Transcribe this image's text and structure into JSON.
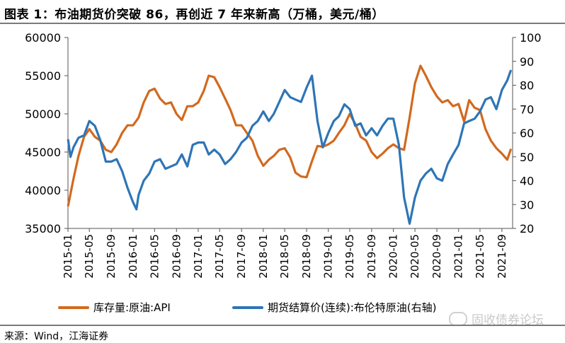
{
  "title": "图表 1：布油期货价突破 86，再创近 7 年来新高（万桶，美元/桶）",
  "source": "来源：Wind，江海证券",
  "watermark": "固收债券论坛",
  "colors": {
    "series1": "#D2691E",
    "series2": "#2E75B6",
    "axis": "#555555"
  },
  "chart_data": {
    "type": "line",
    "x_labels": [
      "2015-01",
      "2015-05",
      "2015-09",
      "2016-01",
      "2016-05",
      "2016-09",
      "2017-01",
      "2017-05",
      "2017-09",
      "2018-01",
      "2018-05",
      "2018-09",
      "2019-01",
      "2019-05",
      "2019-09",
      "2020-01",
      "2020-05",
      "2020-09",
      "2021-01",
      "2021-05",
      "2021-09"
    ],
    "left_axis": {
      "ylim": [
        35000,
        60000
      ],
      "ticks": [
        35000,
        40000,
        45000,
        50000,
        55000,
        60000
      ]
    },
    "right_axis": {
      "ylim": [
        20,
        100
      ],
      "ticks": [
        20,
        30,
        40,
        50,
        60,
        70,
        80,
        90,
        100
      ]
    },
    "series": [
      {
        "name": "库存量:原油:API",
        "axis": "left",
        "color": "#D2691E",
        "points": [
          [
            "2015-01-02",
            38000
          ],
          [
            "2015-02-01",
            41500
          ],
          [
            "2015-03-01",
            44500
          ],
          [
            "2015-04-01",
            47000
          ],
          [
            "2015-05-01",
            48000
          ],
          [
            "2015-06-01",
            47000
          ],
          [
            "2015-07-01",
            46500
          ],
          [
            "2015-08-01",
            45300
          ],
          [
            "2015-09-01",
            45000
          ],
          [
            "2015-10-01",
            46000
          ],
          [
            "2015-11-01",
            47500
          ],
          [
            "2015-12-01",
            48500
          ],
          [
            "2016-01-01",
            48500
          ],
          [
            "2016-02-01",
            49500
          ],
          [
            "2016-03-01",
            51500
          ],
          [
            "2016-04-01",
            53000
          ],
          [
            "2016-05-01",
            53300
          ],
          [
            "2016-06-01",
            52000
          ],
          [
            "2016-07-01",
            51300
          ],
          [
            "2016-08-01",
            51500
          ],
          [
            "2016-09-01",
            50000
          ],
          [
            "2016-10-01",
            49200
          ],
          [
            "2016-11-01",
            51000
          ],
          [
            "2016-12-01",
            51000
          ],
          [
            "2017-01-01",
            51500
          ],
          [
            "2017-02-01",
            53000
          ],
          [
            "2017-03-01",
            55000
          ],
          [
            "2017-04-01",
            54800
          ],
          [
            "2017-05-01",
            53500
          ],
          [
            "2017-06-01",
            52000
          ],
          [
            "2017-07-01",
            50500
          ],
          [
            "2017-08-01",
            48500
          ],
          [
            "2017-09-01",
            48500
          ],
          [
            "2017-10-01",
            47500
          ],
          [
            "2017-11-01",
            46500
          ],
          [
            "2017-12-01",
            44500
          ],
          [
            "2018-01-01",
            43200
          ],
          [
            "2018-02-01",
            44000
          ],
          [
            "2018-03-01",
            44500
          ],
          [
            "2018-04-01",
            45300
          ],
          [
            "2018-05-01",
            45500
          ],
          [
            "2018-06-01",
            44300
          ],
          [
            "2018-07-01",
            42300
          ],
          [
            "2018-08-01",
            41800
          ],
          [
            "2018-09-01",
            41700
          ],
          [
            "2018-10-01",
            43800
          ],
          [
            "2018-11-01",
            45800
          ],
          [
            "2018-12-01",
            45700
          ],
          [
            "2019-01-01",
            46000
          ],
          [
            "2019-02-01",
            46500
          ],
          [
            "2019-03-01",
            47500
          ],
          [
            "2019-04-01",
            48500
          ],
          [
            "2019-05-01",
            50000
          ],
          [
            "2019-06-01",
            48700
          ],
          [
            "2019-07-01",
            47000
          ],
          [
            "2019-08-01",
            46500
          ],
          [
            "2019-09-01",
            45000
          ],
          [
            "2019-10-01",
            44200
          ],
          [
            "2019-11-01",
            44800
          ],
          [
            "2019-12-01",
            45500
          ],
          [
            "2020-01-01",
            46000
          ],
          [
            "2020-02-01",
            45500
          ],
          [
            "2020-03-01",
            45300
          ],
          [
            "2020-04-01",
            49500
          ],
          [
            "2020-05-01",
            54000
          ],
          [
            "2020-06-01",
            56300
          ],
          [
            "2020-07-01",
            55000
          ],
          [
            "2020-08-01",
            53500
          ],
          [
            "2020-09-01",
            52300
          ],
          [
            "2020-10-01",
            51500
          ],
          [
            "2020-11-01",
            51800
          ],
          [
            "2020-12-01",
            51000
          ],
          [
            "2021-01-01",
            51300
          ],
          [
            "2021-02-01",
            49000
          ],
          [
            "2021-03-01",
            51800
          ],
          [
            "2021-04-01",
            50800
          ],
          [
            "2021-05-01",
            50500
          ],
          [
            "2021-06-01",
            48000
          ],
          [
            "2021-07-01",
            46500
          ],
          [
            "2021-08-01",
            45500
          ],
          [
            "2021-09-01",
            44800
          ],
          [
            "2021-10-01",
            44000
          ],
          [
            "2021-10-20",
            45300
          ]
        ]
      },
      {
        "name": "期货结算价(连续):布伦特原油(右轴)",
        "axis": "right",
        "color": "#2E75B6",
        "points": [
          [
            "2015-01-02",
            57
          ],
          [
            "2015-01-15",
            50
          ],
          [
            "2015-02-01",
            54
          ],
          [
            "2015-03-01",
            58
          ],
          [
            "2015-04-01",
            59
          ],
          [
            "2015-05-01",
            65
          ],
          [
            "2015-06-01",
            63
          ],
          [
            "2015-07-01",
            57
          ],
          [
            "2015-08-01",
            48
          ],
          [
            "2015-09-01",
            48
          ],
          [
            "2015-10-01",
            49
          ],
          [
            "2015-11-01",
            44
          ],
          [
            "2015-12-01",
            37
          ],
          [
            "2016-01-01",
            31
          ],
          [
            "2016-01-20",
            28
          ],
          [
            "2016-02-01",
            34
          ],
          [
            "2016-03-01",
            40
          ],
          [
            "2016-04-01",
            43
          ],
          [
            "2016-05-01",
            48
          ],
          [
            "2016-06-01",
            49
          ],
          [
            "2016-07-01",
            45
          ],
          [
            "2016-08-01",
            46
          ],
          [
            "2016-09-01",
            47
          ],
          [
            "2016-10-01",
            51
          ],
          [
            "2016-11-01",
            46
          ],
          [
            "2016-12-01",
            55
          ],
          [
            "2017-01-01",
            56
          ],
          [
            "2017-02-01",
            56
          ],
          [
            "2017-03-01",
            51
          ],
          [
            "2017-04-01",
            53
          ],
          [
            "2017-05-01",
            51
          ],
          [
            "2017-06-01",
            47
          ],
          [
            "2017-07-01",
            49
          ],
          [
            "2017-08-01",
            52
          ],
          [
            "2017-09-01",
            56
          ],
          [
            "2017-10-01",
            58
          ],
          [
            "2017-11-01",
            63
          ],
          [
            "2017-12-01",
            65
          ],
          [
            "2018-01-01",
            69
          ],
          [
            "2018-02-01",
            65
          ],
          [
            "2018-03-01",
            68
          ],
          [
            "2018-04-01",
            73
          ],
          [
            "2018-05-01",
            78
          ],
          [
            "2018-06-01",
            75
          ],
          [
            "2018-07-01",
            74
          ],
          [
            "2018-08-01",
            73
          ],
          [
            "2018-09-01",
            79
          ],
          [
            "2018-10-01",
            84
          ],
          [
            "2018-11-01",
            65
          ],
          [
            "2018-12-01",
            54
          ],
          [
            "2019-01-01",
            60
          ],
          [
            "2019-02-01",
            65
          ],
          [
            "2019-03-01",
            67
          ],
          [
            "2019-04-01",
            72
          ],
          [
            "2019-05-01",
            70
          ],
          [
            "2019-06-01",
            63
          ],
          [
            "2019-07-01",
            64
          ],
          [
            "2019-08-01",
            59
          ],
          [
            "2019-09-01",
            62
          ],
          [
            "2019-10-01",
            59
          ],
          [
            "2019-11-01",
            63
          ],
          [
            "2019-12-01",
            66
          ],
          [
            "2020-01-01",
            66
          ],
          [
            "2020-02-01",
            55
          ],
          [
            "2020-03-01",
            33
          ],
          [
            "2020-04-01",
            22
          ],
          [
            "2020-05-01",
            33
          ],
          [
            "2020-06-01",
            40
          ],
          [
            "2020-07-01",
            43
          ],
          [
            "2020-08-01",
            45
          ],
          [
            "2020-09-01",
            41
          ],
          [
            "2020-10-01",
            40
          ],
          [
            "2020-11-01",
            47
          ],
          [
            "2020-12-01",
            51
          ],
          [
            "2021-01-01",
            55
          ],
          [
            "2021-02-01",
            64
          ],
          [
            "2021-03-01",
            65
          ],
          [
            "2021-04-01",
            66
          ],
          [
            "2021-05-01",
            69
          ],
          [
            "2021-06-01",
            74
          ],
          [
            "2021-07-01",
            75
          ],
          [
            "2021-08-01",
            70
          ],
          [
            "2021-09-01",
            78
          ],
          [
            "2021-10-01",
            82
          ],
          [
            "2021-10-20",
            86
          ]
        ]
      }
    ]
  }
}
